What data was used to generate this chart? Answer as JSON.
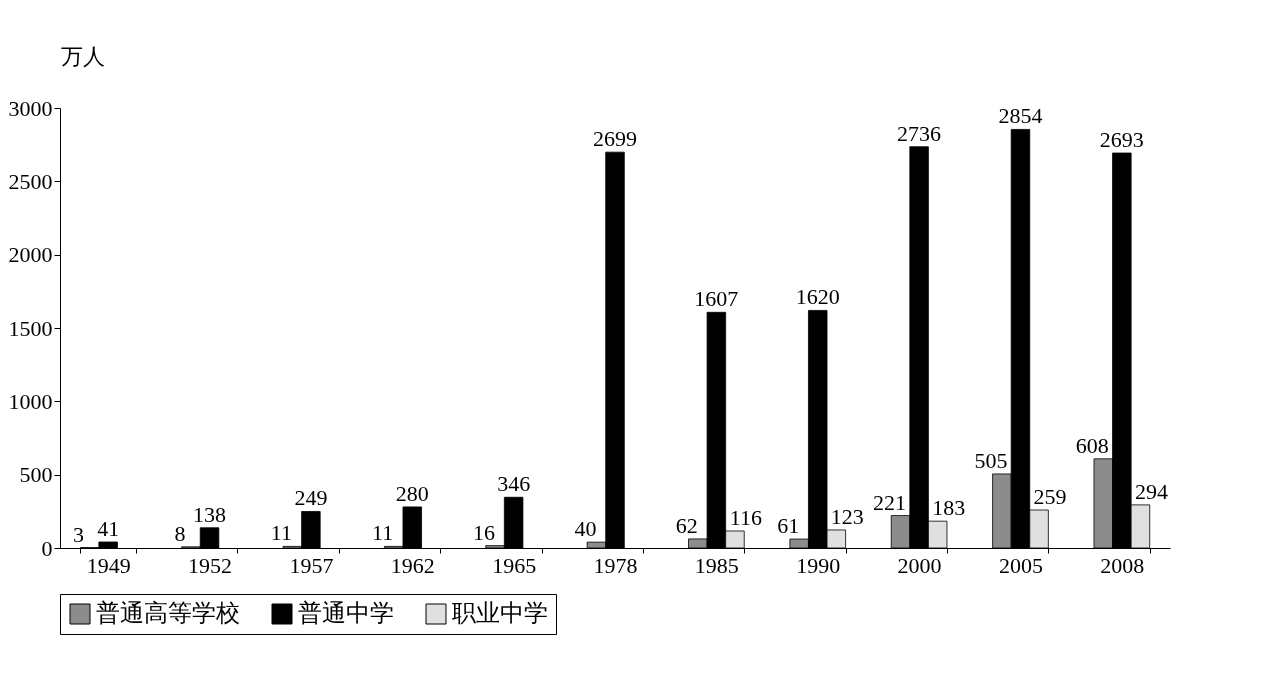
{
  "chart_data": {
    "type": "bar",
    "ylabel": "万人",
    "categories": [
      "1949",
      "1952",
      "1957",
      "1962",
      "1965",
      "1978",
      "1985",
      "1990",
      "2000",
      "2005",
      "2008"
    ],
    "series": [
      {
        "name": "普通高等学校",
        "color": "#8c8c8c",
        "values": [
          3,
          8,
          11,
          11,
          16,
          40,
          62,
          61,
          221,
          505,
          608
        ]
      },
      {
        "name": "普通中学",
        "color": "#000000",
        "values": [
          41,
          138,
          249,
          280,
          346,
          2699,
          1607,
          1620,
          2736,
          2854,
          2693
        ]
      },
      {
        "name": "职业中学",
        "color": "#e0e0e0",
        "values": [
          null,
          null,
          null,
          null,
          null,
          null,
          116,
          123,
          183,
          259,
          294
        ]
      }
    ],
    "ylim": [
      0,
      3000
    ],
    "yticks": [
      0,
      500,
      1000,
      1500,
      2000,
      2500,
      3000
    ],
    "data_labels": true,
    "legend": "bottom",
    "grid": false
  }
}
